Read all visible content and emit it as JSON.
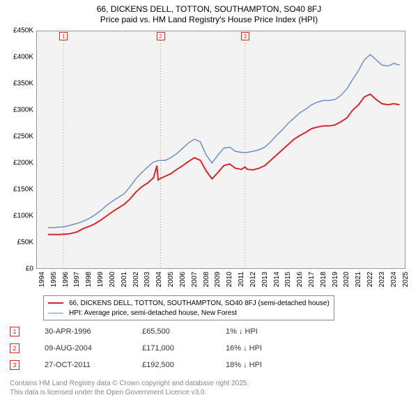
{
  "titles": {
    "line1": "66, DICKENS DELL, TOTTON, SOUTHAMPTON, SO40 8FJ",
    "line2": "Price paid vs. HM Land Registry's House Price Index (HPI)"
  },
  "chart": {
    "type": "line",
    "plot_bg": "#f3f3f3",
    "border_color": "#999999",
    "x_years": [
      1994,
      1995,
      1996,
      1997,
      1998,
      1999,
      2000,
      2001,
      2002,
      2003,
      2004,
      2005,
      2006,
      2007,
      2008,
      2009,
      2010,
      2011,
      2012,
      2013,
      2014,
      2015,
      2016,
      2017,
      2018,
      2019,
      2020,
      2021,
      2022,
      2023,
      2024,
      2025
    ],
    "y_ticks": [
      0,
      50000,
      100000,
      150000,
      200000,
      250000,
      300000,
      350000,
      400000,
      450000
    ],
    "y_tick_labels": [
      "£0",
      "£50K",
      "£100K",
      "£150K",
      "£200K",
      "£250K",
      "£300K",
      "£350K",
      "£400K",
      "£450K"
    ],
    "ylim": [
      0,
      450000
    ],
    "xlim": [
      1994,
      2025.5
    ],
    "tick_fontsize": 10,
    "series": [
      {
        "name": "property",
        "label": "66, DICKENS DELL, TOTTON, SOUTHAMPTON, SO40 8FJ (semi-detached house)",
        "color": "#d62728",
        "line_width": 2,
        "points": [
          [
            1995.0,
            65000
          ],
          [
            1995.5,
            65000
          ],
          [
            1996.0,
            65000
          ],
          [
            1996.33,
            65500
          ],
          [
            1996.8,
            66000
          ],
          [
            1997.5,
            70000
          ],
          [
            1998.0,
            76000
          ],
          [
            1998.5,
            80000
          ],
          [
            1999.0,
            85000
          ],
          [
            1999.5,
            92000
          ],
          [
            2000.0,
            100000
          ],
          [
            2000.5,
            108000
          ],
          [
            2001.0,
            115000
          ],
          [
            2001.5,
            122000
          ],
          [
            2002.0,
            132000
          ],
          [
            2002.5,
            145000
          ],
          [
            2003.0,
            155000
          ],
          [
            2003.5,
            162000
          ],
          [
            2004.0,
            172000
          ],
          [
            2004.3,
            195000
          ],
          [
            2004.4,
            168000
          ],
          [
            2004.61,
            171000
          ],
          [
            2005.0,
            175000
          ],
          [
            2005.5,
            180000
          ],
          [
            2006.0,
            188000
          ],
          [
            2006.5,
            195000
          ],
          [
            2007.0,
            203000
          ],
          [
            2007.5,
            210000
          ],
          [
            2008.0,
            205000
          ],
          [
            2008.5,
            185000
          ],
          [
            2009.0,
            170000
          ],
          [
            2009.5,
            182000
          ],
          [
            2010.0,
            195000
          ],
          [
            2010.5,
            198000
          ],
          [
            2011.0,
            190000
          ],
          [
            2011.5,
            188000
          ],
          [
            2011.82,
            192500
          ],
          [
            2012.0,
            188000
          ],
          [
            2012.5,
            187000
          ],
          [
            2013.0,
            190000
          ],
          [
            2013.5,
            195000
          ],
          [
            2014.0,
            205000
          ],
          [
            2014.5,
            215000
          ],
          [
            2015.0,
            225000
          ],
          [
            2015.5,
            235000
          ],
          [
            2016.0,
            245000
          ],
          [
            2016.5,
            252000
          ],
          [
            2017.0,
            258000
          ],
          [
            2017.5,
            265000
          ],
          [
            2018.0,
            268000
          ],
          [
            2018.5,
            270000
          ],
          [
            2019.0,
            270000
          ],
          [
            2019.5,
            272000
          ],
          [
            2020.0,
            278000
          ],
          [
            2020.5,
            285000
          ],
          [
            2021.0,
            300000
          ],
          [
            2021.5,
            310000
          ],
          [
            2022.0,
            325000
          ],
          [
            2022.5,
            330000
          ],
          [
            2023.0,
            320000
          ],
          [
            2023.5,
            312000
          ],
          [
            2024.0,
            310000
          ],
          [
            2024.5,
            312000
          ],
          [
            2025.0,
            310000
          ]
        ]
      },
      {
        "name": "hpi",
        "label": "HPI: Average price, semi-detached house, New Forest",
        "color": "#6b8fc9",
        "line_width": 1.5,
        "points": [
          [
            1995.0,
            78000
          ],
          [
            1995.5,
            78000
          ],
          [
            1996.0,
            79000
          ],
          [
            1996.5,
            80000
          ],
          [
            1997.0,
            83000
          ],
          [
            1997.5,
            86000
          ],
          [
            1998.0,
            90000
          ],
          [
            1998.5,
            95000
          ],
          [
            1999.0,
            102000
          ],
          [
            1999.5,
            110000
          ],
          [
            2000.0,
            120000
          ],
          [
            2000.5,
            128000
          ],
          [
            2001.0,
            135000
          ],
          [
            2001.5,
            142000
          ],
          [
            2002.0,
            155000
          ],
          [
            2002.5,
            170000
          ],
          [
            2003.0,
            182000
          ],
          [
            2003.5,
            192000
          ],
          [
            2004.0,
            202000
          ],
          [
            2004.5,
            205000
          ],
          [
            2005.0,
            205000
          ],
          [
            2005.5,
            210000
          ],
          [
            2006.0,
            218000
          ],
          [
            2006.5,
            228000
          ],
          [
            2007.0,
            238000
          ],
          [
            2007.5,
            245000
          ],
          [
            2008.0,
            240000
          ],
          [
            2008.5,
            215000
          ],
          [
            2009.0,
            200000
          ],
          [
            2009.5,
            215000
          ],
          [
            2010.0,
            228000
          ],
          [
            2010.5,
            230000
          ],
          [
            2011.0,
            222000
          ],
          [
            2011.5,
            220000
          ],
          [
            2012.0,
            220000
          ],
          [
            2012.5,
            222000
          ],
          [
            2013.0,
            225000
          ],
          [
            2013.5,
            230000
          ],
          [
            2014.0,
            240000
          ],
          [
            2014.5,
            252000
          ],
          [
            2015.0,
            263000
          ],
          [
            2015.5,
            275000
          ],
          [
            2016.0,
            285000
          ],
          [
            2016.5,
            295000
          ],
          [
            2017.0,
            302000
          ],
          [
            2017.5,
            310000
          ],
          [
            2018.0,
            315000
          ],
          [
            2018.5,
            318000
          ],
          [
            2019.0,
            318000
          ],
          [
            2019.5,
            320000
          ],
          [
            2020.0,
            328000
          ],
          [
            2020.5,
            340000
          ],
          [
            2021.0,
            358000
          ],
          [
            2021.5,
            375000
          ],
          [
            2022.0,
            395000
          ],
          [
            2022.5,
            405000
          ],
          [
            2023.0,
            395000
          ],
          [
            2023.5,
            385000
          ],
          [
            2024.0,
            383000
          ],
          [
            2024.5,
            388000
          ],
          [
            2025.0,
            385000
          ]
        ]
      }
    ],
    "markers": [
      {
        "n": "1",
        "x": 1996.33,
        "date": "30-APR-1996",
        "price": "£65,500",
        "delta": "1% ↓ HPI"
      },
      {
        "n": "2",
        "x": 2004.61,
        "date": "09-AUG-2004",
        "price": "£171,000",
        "delta": "16% ↓ HPI"
      },
      {
        "n": "3",
        "x": 2011.82,
        "date": "27-OCT-2011",
        "price": "£192,500",
        "delta": "18% ↓ HPI"
      }
    ]
  },
  "legend": {
    "border_color": "#888888"
  },
  "footnote": {
    "line1": "Contains HM Land Registry data © Crown copyright and database right 2025.",
    "line2": "This data is licensed under the Open Government Licence v3.0."
  }
}
